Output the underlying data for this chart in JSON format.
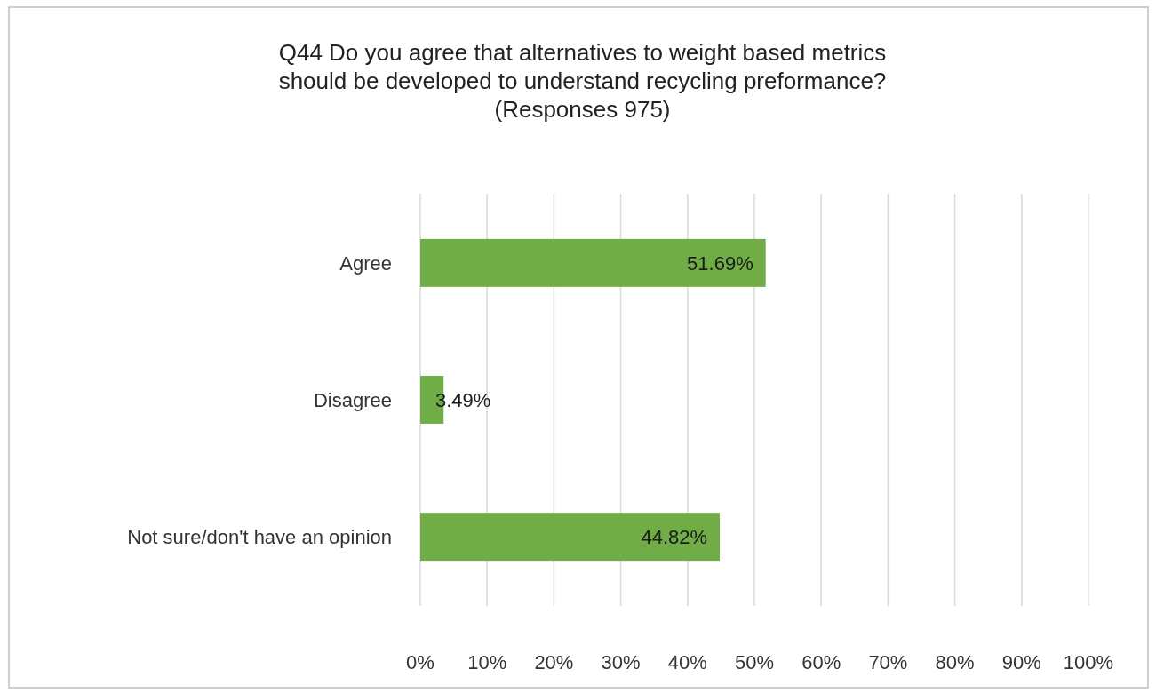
{
  "chart_data": {
    "type": "bar",
    "orientation": "horizontal",
    "title": "Q44 Do you agree that alternatives to weight based metrics\nshould be developed to understand recycling preformance?\n(Responses 975)",
    "categories": [
      "Agree",
      "Disagree",
      "Not sure/don't have an opinion"
    ],
    "values": [
      51.69,
      3.49,
      44.82
    ],
    "color": "#70ad47",
    "value_labels": [
      "51.69%",
      "3.49%",
      "44.82%"
    ],
    "xlim": [
      0,
      100
    ],
    "xticks": [
      {
        "value": 0,
        "label": "0%"
      },
      {
        "value": 10,
        "label": "10%"
      },
      {
        "value": 20,
        "label": "20%"
      },
      {
        "value": 30,
        "label": "30%"
      },
      {
        "value": 40,
        "label": "40%"
      },
      {
        "value": 50,
        "label": "50%"
      },
      {
        "value": 60,
        "label": "60%"
      },
      {
        "value": 70,
        "label": "70%"
      },
      {
        "value": 80,
        "label": "80%"
      },
      {
        "value": 90,
        "label": "90%"
      },
      {
        "value": 100,
        "label": "100%"
      }
    ],
    "grid": "x"
  }
}
